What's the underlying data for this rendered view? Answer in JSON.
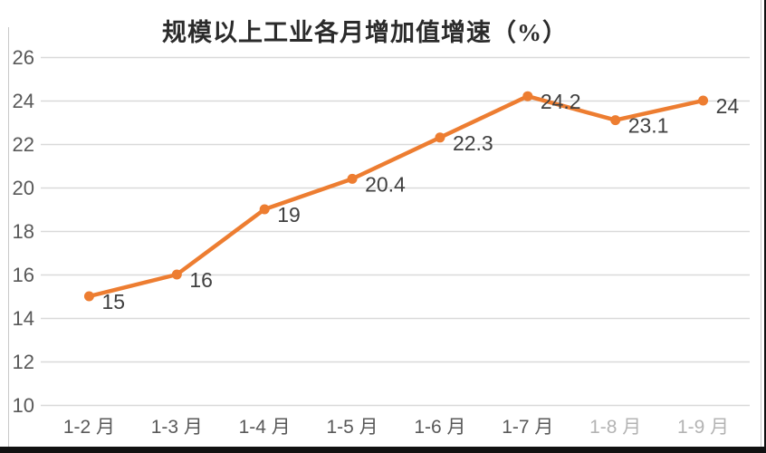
{
  "chart_data": {
    "type": "line",
    "title": "规模以上工业各月增加值增速（%）",
    "categories": [
      "1-2 月",
      "1-3 月",
      "1-4 月",
      "1-5 月",
      "1-6 月",
      "1-7 月",
      "1-8 月",
      "1-9 月"
    ],
    "values": [
      15,
      16,
      19,
      20.4,
      22.3,
      24.2,
      23.1,
      24
    ],
    "data_labels": [
      "15",
      "16",
      "19",
      "20.4",
      "22.3",
      "24.2",
      "23.1",
      "24"
    ],
    "yticks": [
      10,
      12,
      14,
      16,
      18,
      20,
      22,
      24,
      26
    ],
    "ylim": [
      10,
      26
    ],
    "xlabel": "",
    "ylabel": "",
    "grid": true,
    "legend_position": "none",
    "series_color": "#ED7D31",
    "data_label_color": "#404040",
    "axis_label_color": "#595959",
    "gridline_color": "#D9D9D9",
    "faded_category_indices": [
      6,
      7
    ]
  }
}
